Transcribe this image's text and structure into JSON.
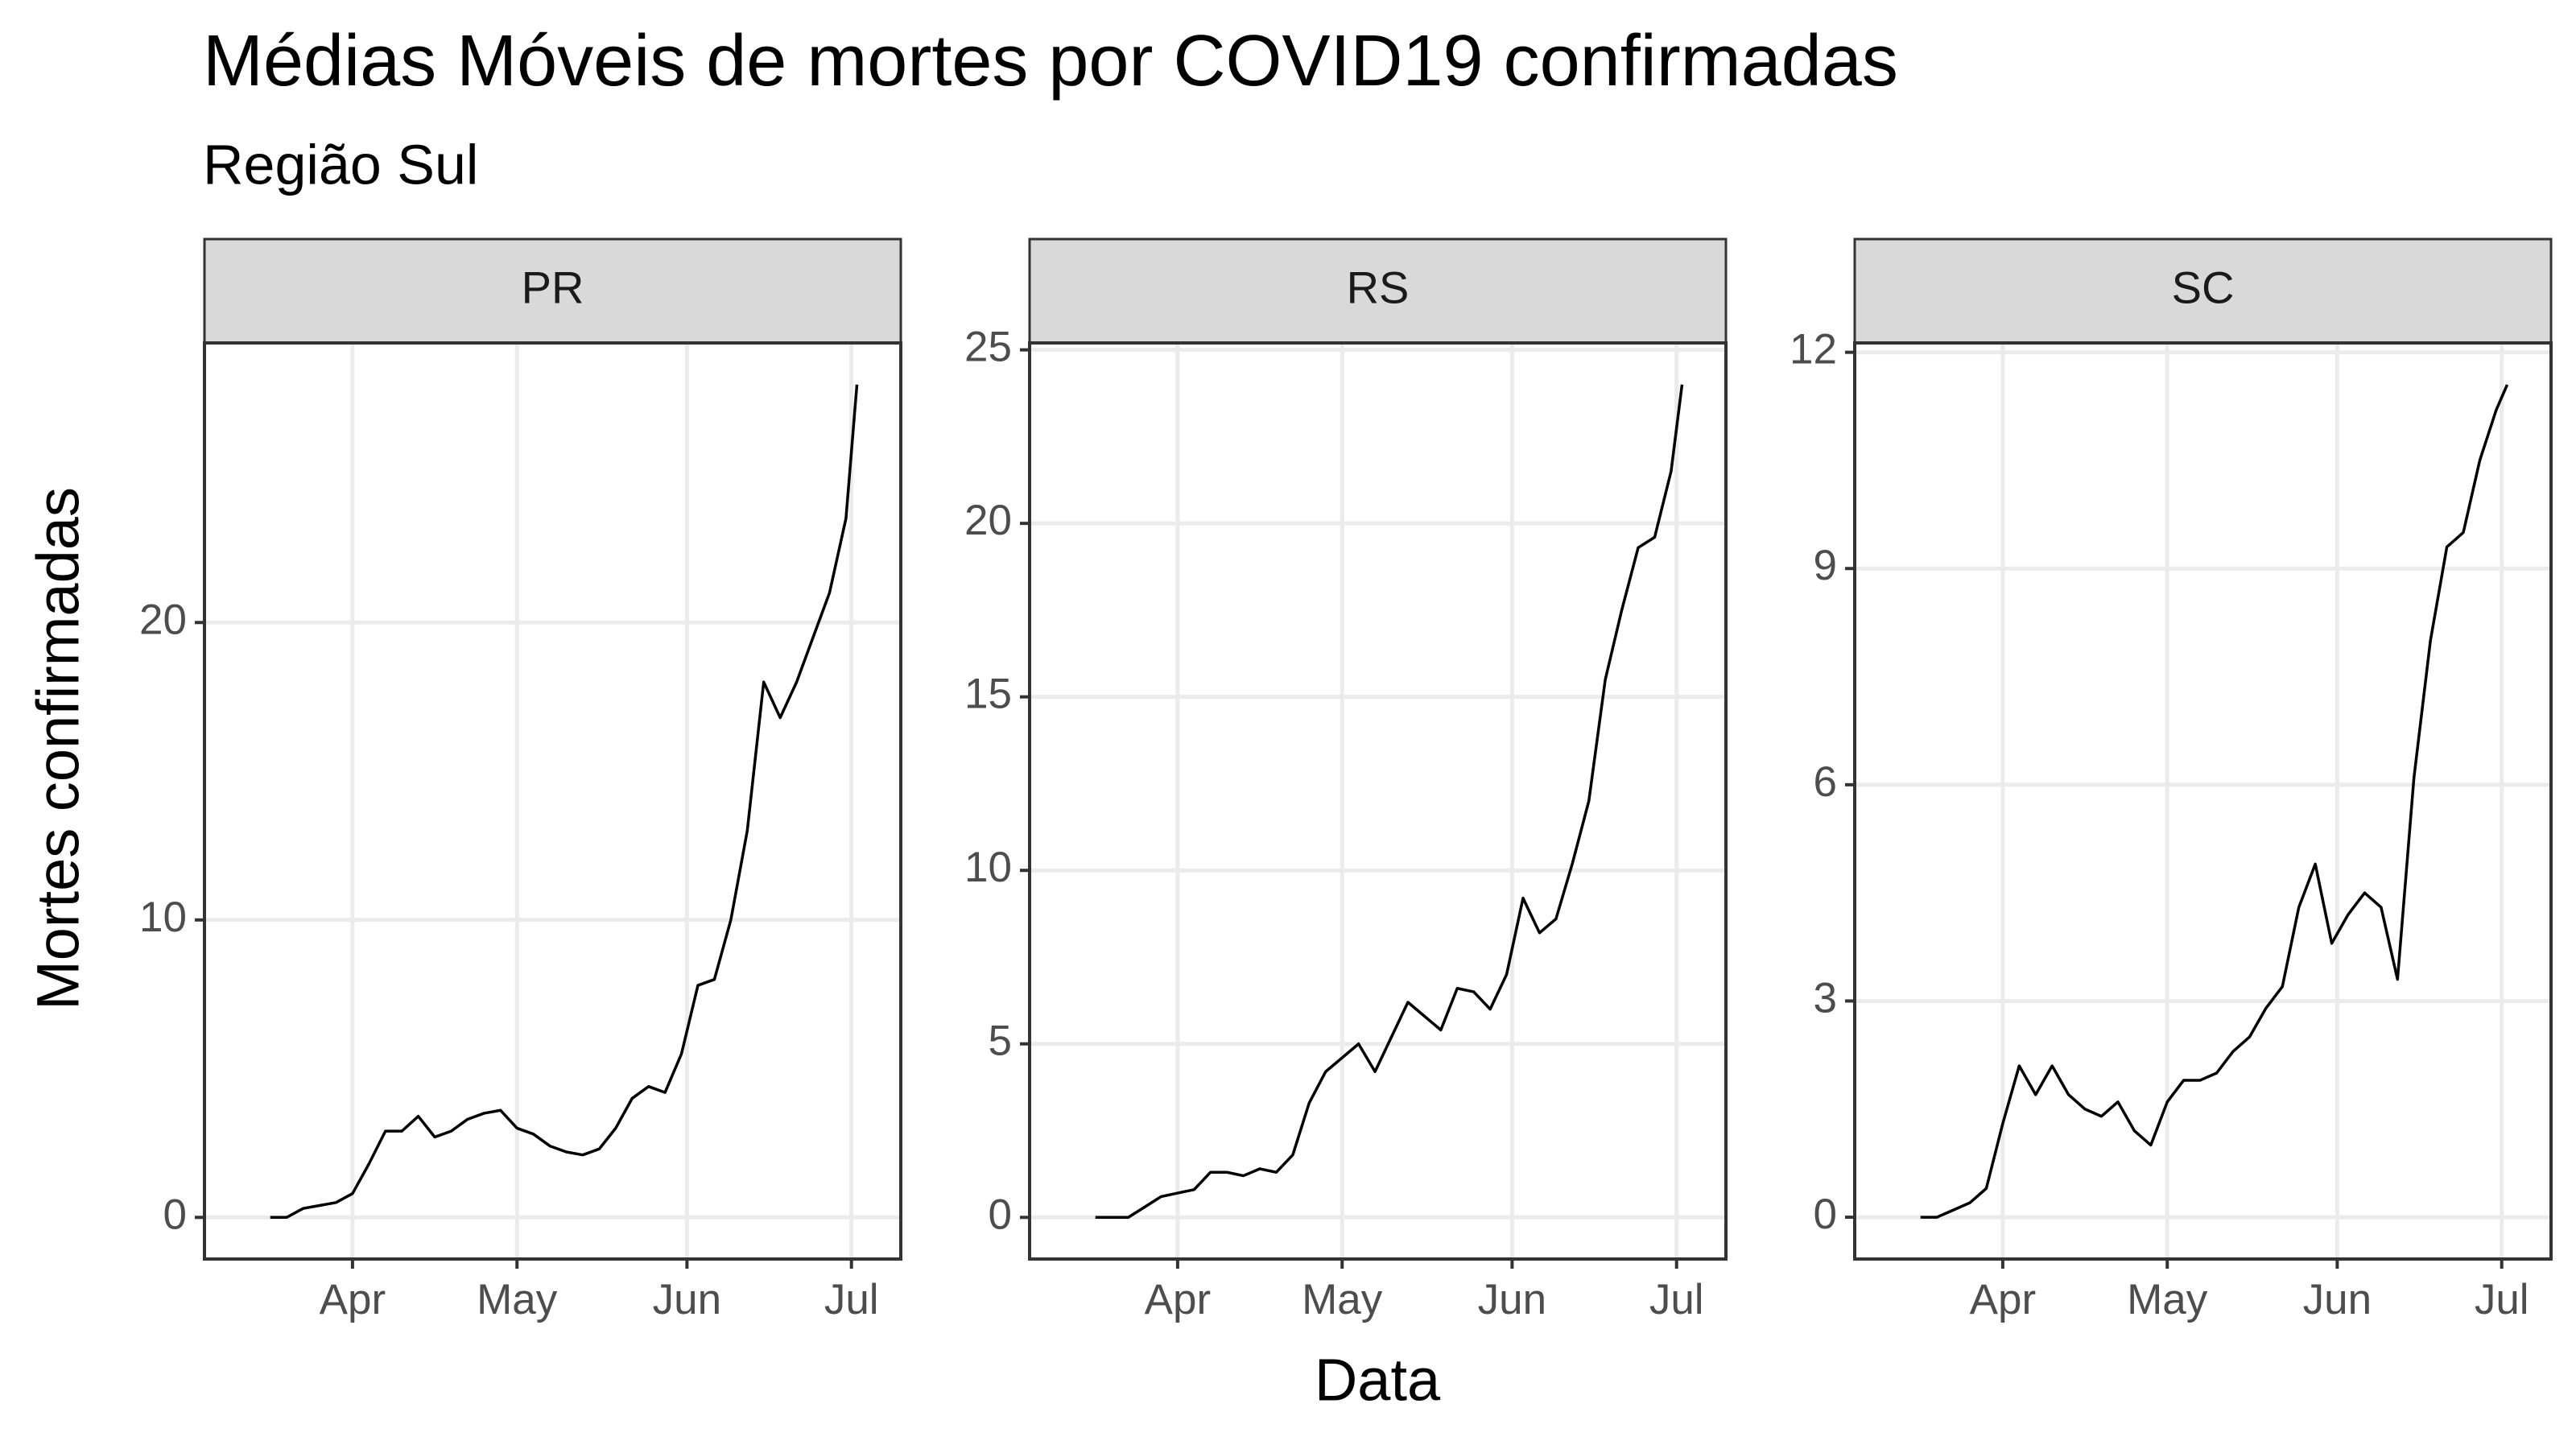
{
  "title": "Médias Móveis de mortes por COVID19 confirmadas",
  "subtitle": "Região Sul",
  "x_label": "Data",
  "y_label": "Mortes confirmadas",
  "chart_data": [
    {
      "type": "line",
      "title": "PR",
      "color": "#000000",
      "grid": true,
      "x": [
        77,
        80,
        83,
        86,
        89,
        92,
        95,
        98,
        101,
        104,
        107,
        110,
        113,
        116,
        119,
        122,
        125,
        128,
        131,
        134,
        137,
        140,
        143,
        146,
        149,
        152,
        155,
        158,
        161,
        164,
        167,
        170,
        173,
        176,
        179,
        182,
        184
      ],
      "values": [
        0,
        0,
        0.3,
        0.4,
        0.5,
        0.8,
        1.8,
        2.9,
        2.9,
        3.4,
        2.7,
        2.9,
        3.3,
        3.5,
        3.6,
        3.0,
        2.8,
        2.4,
        2.2,
        2.1,
        2.3,
        3.0,
        4.0,
        4.4,
        4.2,
        5.5,
        7.8,
        8.0,
        10.0,
        13.0,
        18.0,
        16.8,
        18.0,
        19.5,
        21.0,
        23.5,
        28.0
      ],
      "xlim": [
        65,
        192
      ],
      "xticks": [
        {
          "value": 92,
          "label": "Apr"
        },
        {
          "value": 122,
          "label": "May"
        },
        {
          "value": 153,
          "label": "Jun"
        },
        {
          "value": 183,
          "label": "Jul"
        }
      ],
      "ylim": [
        -1.4,
        29.4
      ],
      "yticks": [
        0,
        10,
        20
      ]
    },
    {
      "type": "line",
      "title": "RS",
      "color": "#000000",
      "grid": true,
      "x": [
        77,
        80,
        83,
        86,
        89,
        92,
        95,
        98,
        101,
        104,
        107,
        110,
        113,
        116,
        119,
        122,
        125,
        128,
        131,
        134,
        137,
        140,
        143,
        146,
        149,
        152,
        155,
        158,
        161,
        164,
        167,
        170,
        173,
        176,
        179,
        182,
        184
      ],
      "values": [
        0,
        0,
        0,
        0.3,
        0.6,
        0.7,
        0.8,
        1.3,
        1.3,
        1.2,
        1.4,
        1.3,
        1.8,
        3.3,
        4.2,
        4.6,
        5.0,
        4.2,
        5.2,
        6.2,
        5.8,
        5.4,
        6.6,
        6.5,
        6.0,
        7.0,
        9.2,
        8.2,
        8.6,
        10.2,
        12.0,
        15.5,
        17.5,
        19.3,
        19.6,
        21.5,
        24.0
      ],
      "xlim": [
        65,
        192
      ],
      "xticks": [
        {
          "value": 92,
          "label": "Apr"
        },
        {
          "value": 122,
          "label": "May"
        },
        {
          "value": 153,
          "label": "Jun"
        },
        {
          "value": 183,
          "label": "Jul"
        }
      ],
      "ylim": [
        -1.2,
        25.2
      ],
      "yticks": [
        0,
        5,
        10,
        15,
        20,
        25
      ]
    },
    {
      "type": "line",
      "title": "SC",
      "color": "#000000",
      "grid": true,
      "x": [
        77,
        80,
        83,
        86,
        89,
        92,
        95,
        98,
        101,
        104,
        107,
        110,
        113,
        116,
        119,
        122,
        125,
        128,
        131,
        134,
        137,
        140,
        143,
        146,
        149,
        152,
        155,
        158,
        161,
        164,
        167,
        170,
        173,
        176,
        179,
        182,
        184
      ],
      "values": [
        0,
        0,
        0.1,
        0.2,
        0.4,
        1.3,
        2.1,
        1.7,
        2.1,
        1.7,
        1.5,
        1.4,
        1.6,
        1.2,
        1.0,
        1.6,
        1.9,
        1.9,
        2.0,
        2.3,
        2.5,
        2.9,
        3.2,
        4.3,
        4.9,
        3.8,
        4.2,
        4.5,
        4.3,
        3.3,
        6.1,
        8.0,
        9.3,
        9.5,
        10.5,
        11.2,
        11.55
      ],
      "xlim": [
        65,
        192
      ],
      "xticks": [
        {
          "value": 92,
          "label": "Apr"
        },
        {
          "value": 122,
          "label": "May"
        },
        {
          "value": 153,
          "label": "Jun"
        },
        {
          "value": 183,
          "label": "Jul"
        }
      ],
      "ylim": [
        -0.58,
        12.13
      ],
      "yticks": [
        0,
        3,
        6,
        9,
        12
      ]
    }
  ]
}
